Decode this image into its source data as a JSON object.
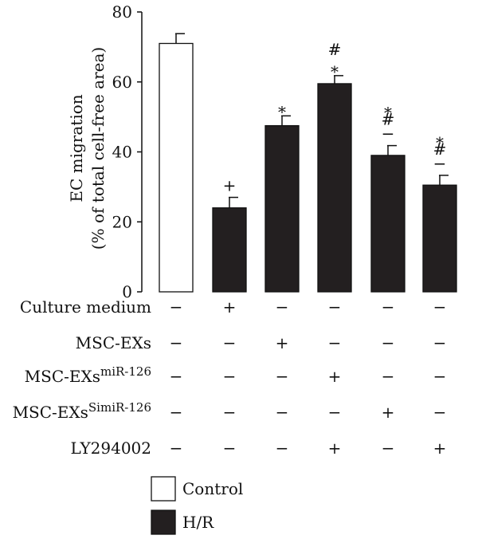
{
  "chart_data": {
    "type": "bar",
    "ylabel_line1": "EC migration",
    "ylabel_line2": "(% of total cell-free area)",
    "ylim": [
      0,
      80
    ],
    "yticks": [
      "0",
      "20",
      "40",
      "60",
      "80"
    ],
    "grid": false,
    "bars": [
      {
        "value": 71,
        "error": 2.8,
        "group": "Control",
        "annotations": []
      },
      {
        "value": 24,
        "error": 3.0,
        "group": "H/R",
        "annotations": [
          "+"
        ]
      },
      {
        "value": 47.5,
        "error": 2.8,
        "group": "H/R",
        "annotations": [
          "*"
        ]
      },
      {
        "value": 59.5,
        "error": 2.3,
        "group": "H/R",
        "annotations": [
          "*",
          "#"
        ]
      },
      {
        "value": 39,
        "error": 2.8,
        "group": "H/R",
        "annotations": [
          "−",
          "#",
          "*"
        ]
      },
      {
        "value": 30.5,
        "error": 2.8,
        "group": "H/R",
        "annotations": [
          "−",
          "#",
          "*"
        ]
      }
    ],
    "conditions": [
      {
        "label": "Culture medium",
        "sup": "",
        "marks": [
          "−",
          "+",
          "−",
          "−",
          "−",
          "−"
        ]
      },
      {
        "label": "MSC-EXs",
        "sup": "",
        "marks": [
          "−",
          "−",
          "+",
          "−",
          "−",
          "−"
        ]
      },
      {
        "label": "MSC-EXs",
        "sup": "miR-126",
        "marks": [
          "−",
          "−",
          "−",
          "+",
          "−",
          "−"
        ]
      },
      {
        "label": "MSC-EXs",
        "sup": "SimiR-126",
        "marks": [
          "−",
          "−",
          "−",
          "−",
          "+",
          "−"
        ]
      },
      {
        "label": "LY294002",
        "sup": "",
        "marks": [
          "−",
          "−",
          "−",
          "+",
          "−",
          "+"
        ]
      }
    ],
    "legend": [
      {
        "name": "Control",
        "fill": "#ffffff"
      },
      {
        "name": "H/R",
        "fill": "#231f20"
      }
    ]
  },
  "colors": {
    "hr_bar": "#231f20",
    "control_bar": "#ffffff",
    "axis": "#111111"
  }
}
